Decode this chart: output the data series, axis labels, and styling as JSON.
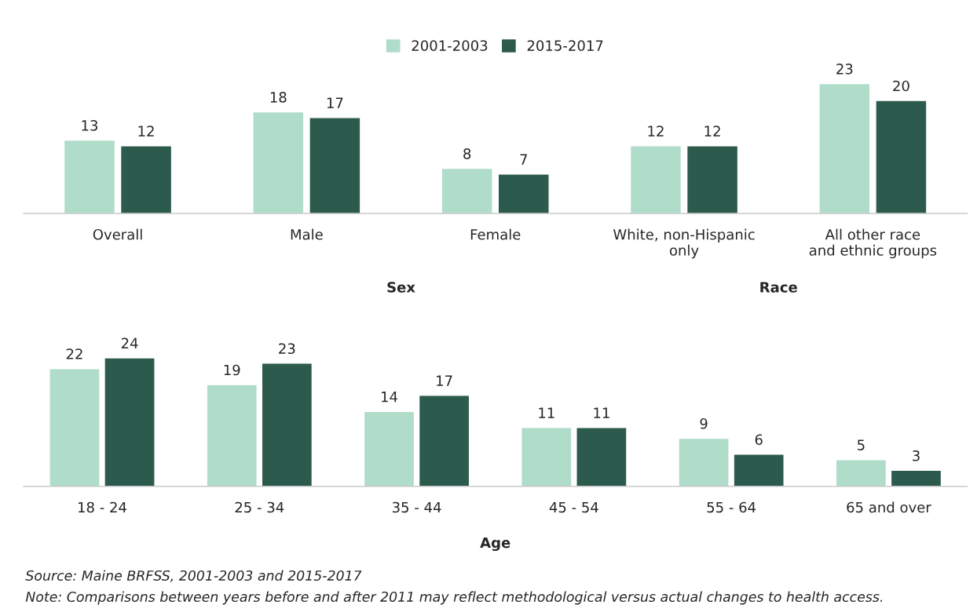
{
  "chart_data": [
    {
      "type": "bar",
      "categories": [
        "Overall",
        "Male",
        "Female",
        "White, non-Hispanic\nonly",
        "All other race\nand ethnic groups"
      ],
      "series": [
        {
          "name": "2001-2003",
          "color": "#b0dcca",
          "values": [
            13,
            18,
            8,
            12,
            23
          ]
        },
        {
          "name": "2015-2017",
          "color": "#2c5a4d",
          "values": [
            12,
            17,
            7,
            12,
            20
          ]
        }
      ],
      "annotations": [
        "Sex",
        "Race"
      ],
      "data_labels": true,
      "legend": "top",
      "grid": false
    },
    {
      "type": "bar",
      "categories": [
        "18 - 24",
        "25 - 34",
        "35 - 44",
        "45 - 54",
        "55 - 64",
        "65 and over"
      ],
      "series": [
        {
          "color": "#b0dcca",
          "values": [
            22,
            19,
            14,
            11,
            9,
            5
          ]
        },
        {
          "color": "#2c5a4d",
          "values": [
            24,
            23,
            17,
            11,
            6,
            3
          ]
        }
      ],
      "xlabel": "Age",
      "annotations": [
        "Source: Maine BRFSS, 2001-2003 and 2015-2017",
        "Note: Comparisons between years before and after 2011 may reflect methodological versus actual changes to health access."
      ],
      "data_labels": true,
      "grid": false
    }
  ]
}
